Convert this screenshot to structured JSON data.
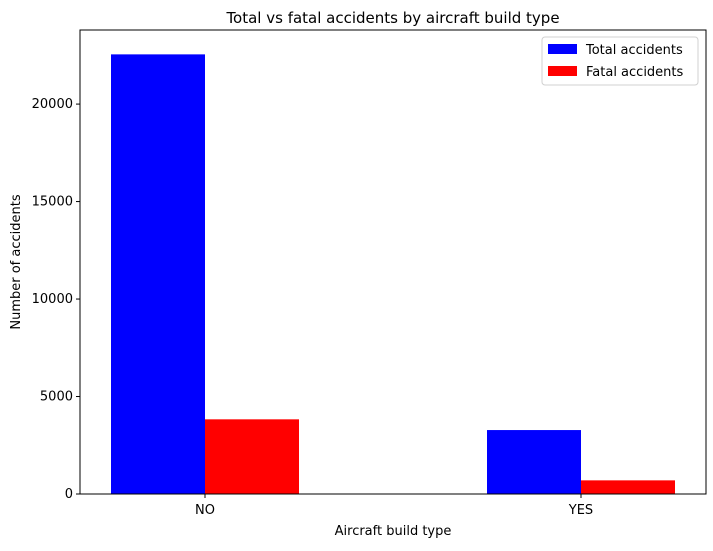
{
  "chart_data": {
    "type": "bar",
    "title": "Total vs fatal accidents by aircraft build type",
    "xlabel": "Aircraft build type",
    "ylabel": "Number of accidents",
    "categories": [
      "NO",
      "YES"
    ],
    "series": [
      {
        "name": "Total accidents",
        "color": "#0000ff",
        "values": [
          22550,
          3280
        ]
      },
      {
        "name": "Fatal accidents",
        "color": "#ff0000",
        "values": [
          3830,
          700
        ]
      }
    ],
    "ylim": [
      0,
      23800
    ],
    "yticks": [
      0,
      5000,
      10000,
      15000,
      20000
    ],
    "ytick_labels": [
      "0",
      "5000",
      "10000",
      "15000",
      "20000"
    ],
    "grid": false,
    "legend_position": "top-right"
  }
}
